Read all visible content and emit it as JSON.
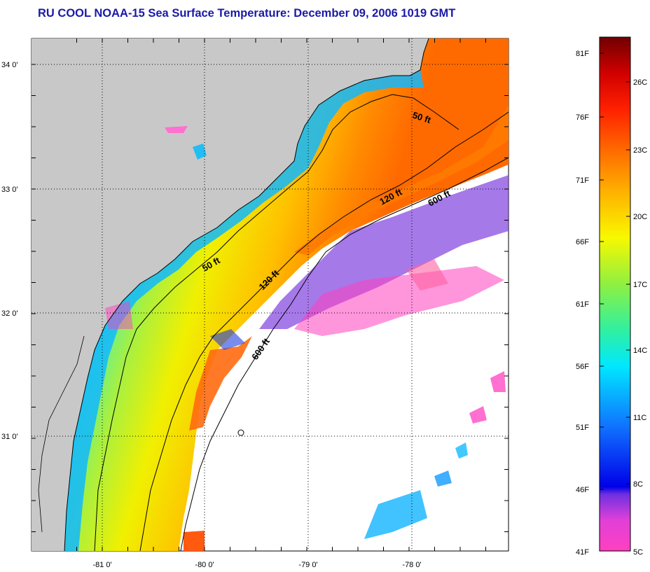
{
  "title": "RU COOL  NOAA-15  Sea Surface Temperature:  December 09, 2006 1019 GMT",
  "map": {
    "lat_labels": [
      "34 0'",
      "33 0'",
      "32 0'",
      "31 0'"
    ],
    "lon_labels": [
      "-81 0'",
      "-80 0'",
      "-79 0'",
      "-78 0'"
    ],
    "contour_labels": [
      "50 ft",
      "120 ft",
      "600 ft",
      "50 ft",
      "120 ft",
      "600 ft"
    ]
  },
  "colorbar": {
    "fahrenheit_labels": [
      "81F",
      "76F",
      "71F",
      "66F",
      "61F",
      "56F",
      "51F",
      "46F",
      "41F"
    ],
    "celsius_labels": [
      "26C",
      "23C",
      "20C",
      "17C",
      "14C",
      "11C",
      "8C",
      "5C"
    ],
    "colors": [
      "#ff40c0",
      "#b040e0",
      "#2020e0",
      "#1060ff",
      "#00c8ff",
      "#00e8c0",
      "#80f060",
      "#f0ff00",
      "#ffb000",
      "#ff6000",
      "#ff1000",
      "#c00000",
      "#700000"
    ]
  }
}
